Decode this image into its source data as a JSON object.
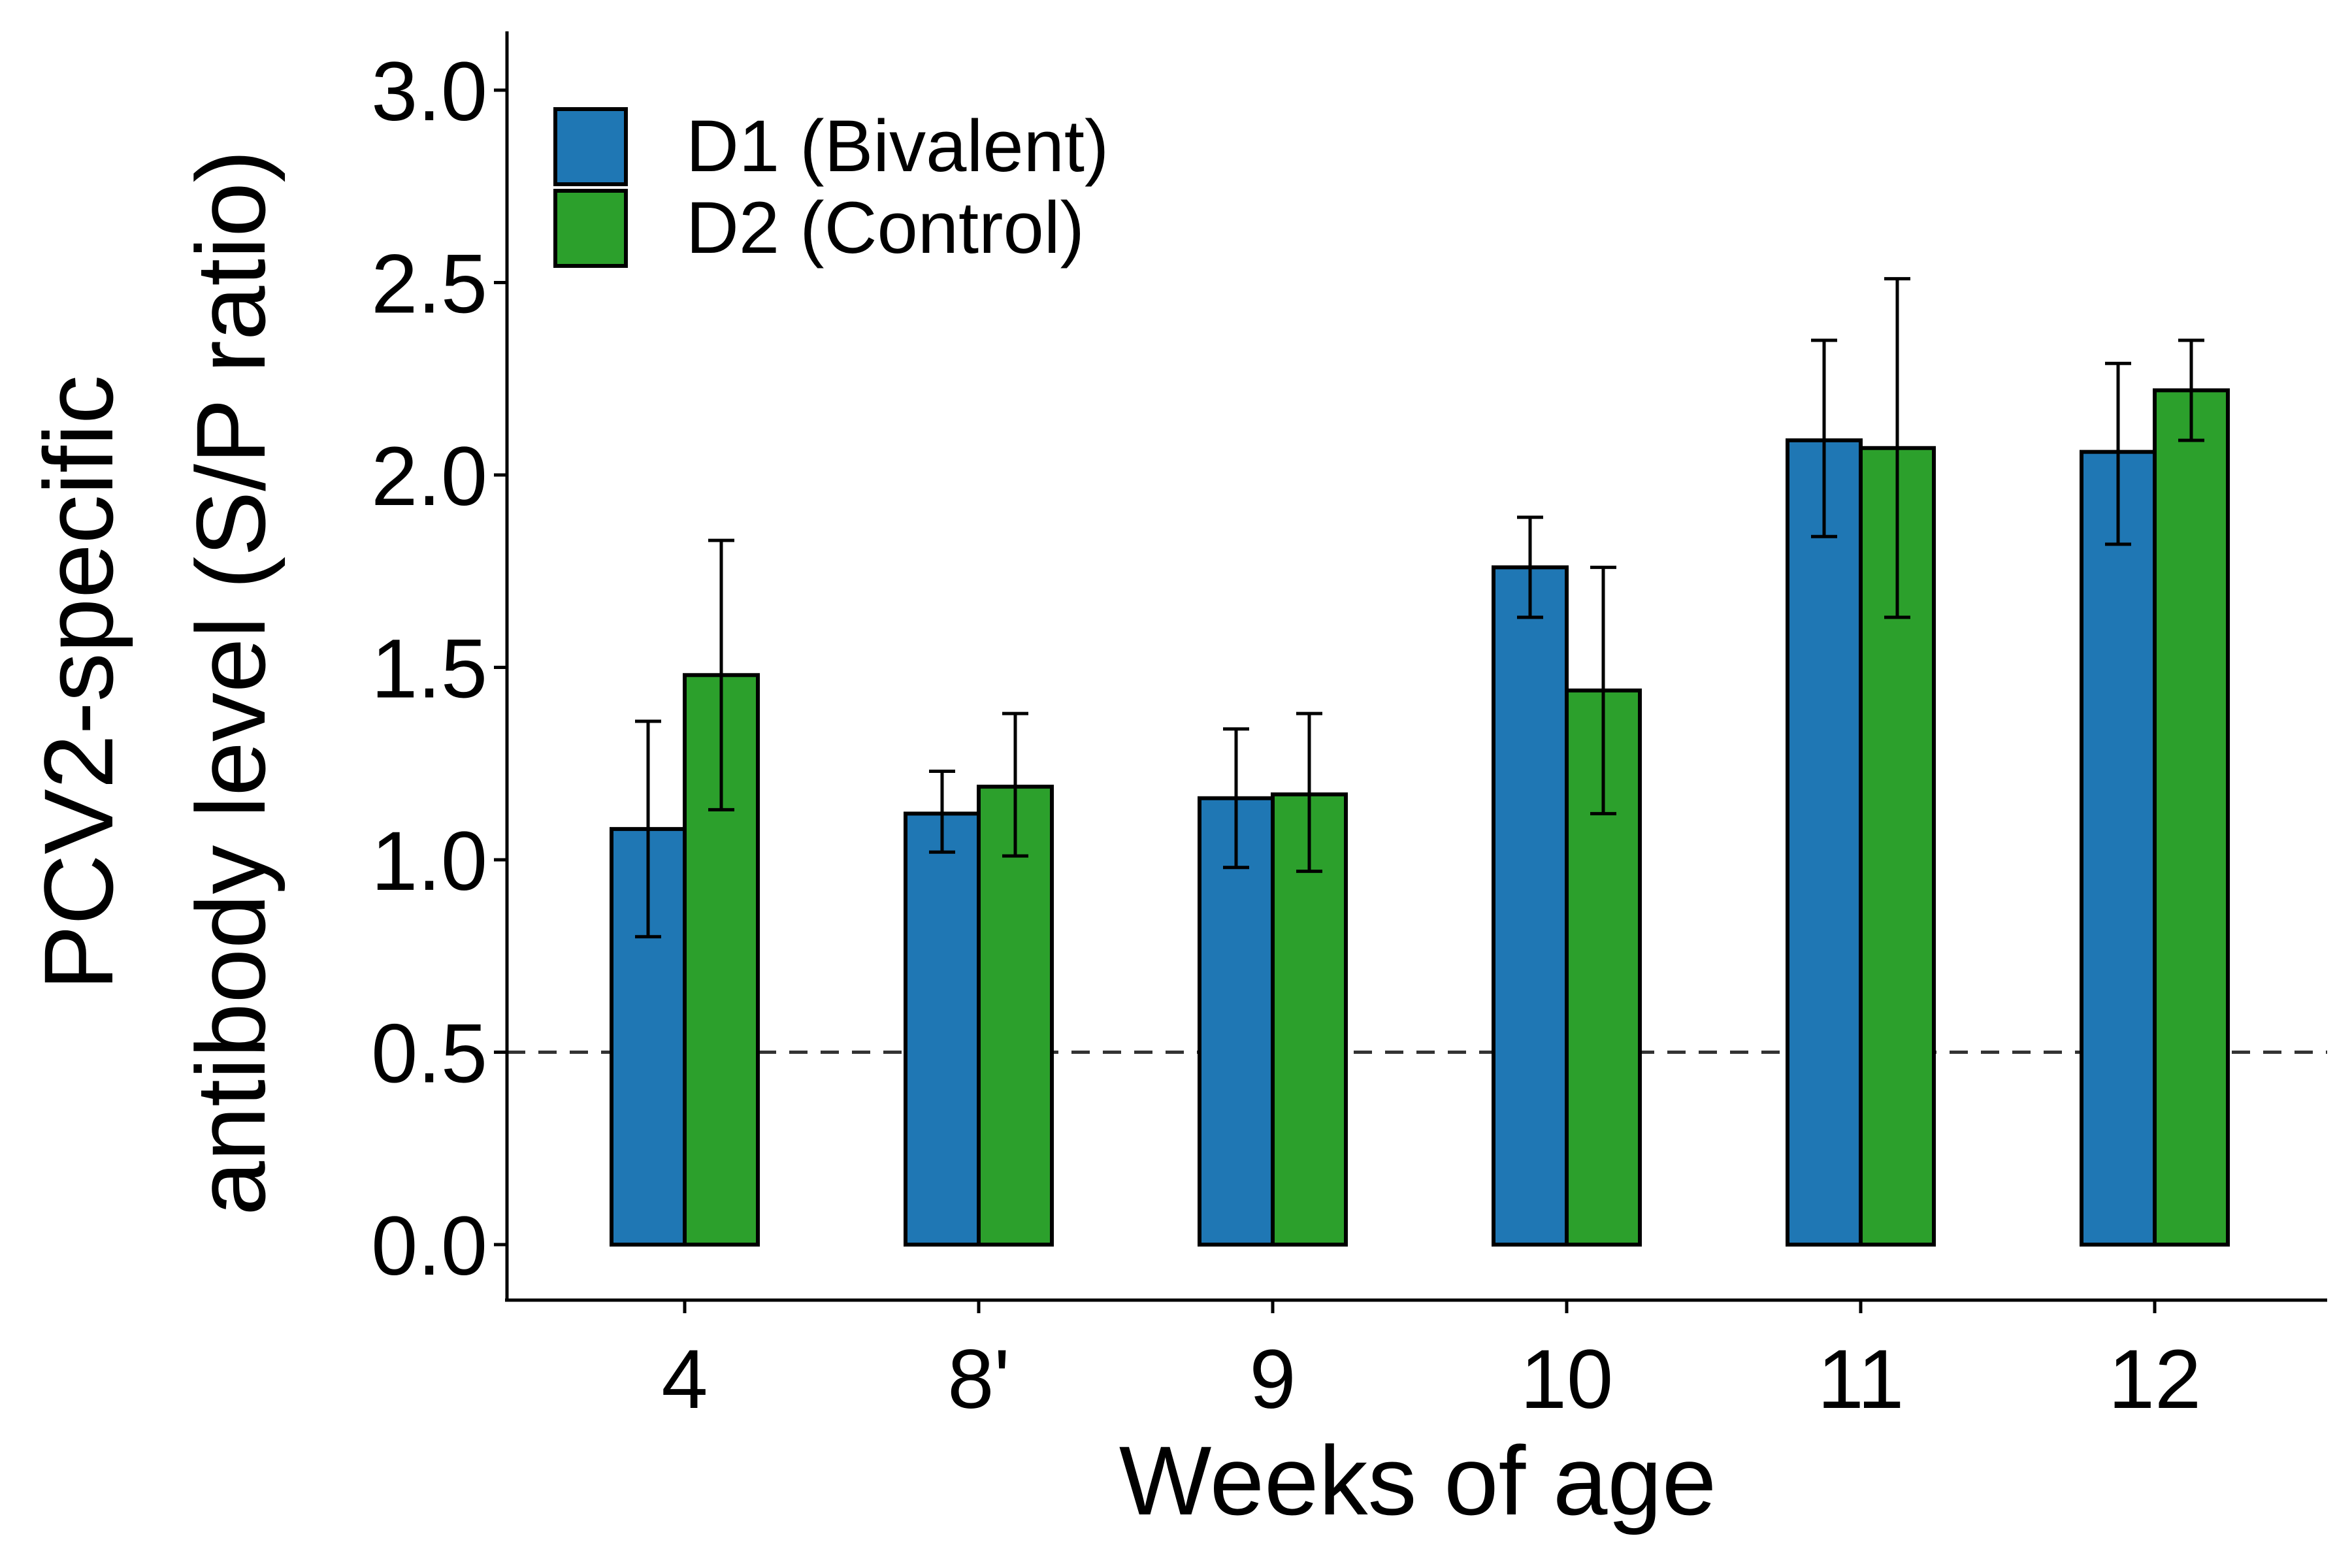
{
  "chart_data": {
    "type": "bar",
    "title": "",
    "xlabel": "Weeks of age",
    "ylabel_lines": [
      "PCV2-specific",
      "antibody level (S/P ratio)"
    ],
    "categories": [
      "4",
      "8'",
      "9",
      "10",
      "11",
      "12"
    ],
    "ylim": [
      0,
      3.1
    ],
    "yticks": [
      "0.0",
      "0.5",
      "1.0",
      "1.5",
      "2.0",
      "2.5",
      "3.0"
    ],
    "grid": false,
    "legend_position": "top-left",
    "reference_line": {
      "y": 0.5,
      "style": "dashed"
    },
    "series": [
      {
        "name": "D1 (Bivalent)",
        "color": "#1f77b4",
        "values": [
          1.08,
          1.12,
          1.16,
          1.76,
          2.09,
          2.06
        ],
        "error_low": [
          0.8,
          1.02,
          0.98,
          1.63,
          1.84,
          1.82
        ],
        "error_high": [
          1.36,
          1.23,
          1.34,
          1.89,
          2.35,
          2.29
        ]
      },
      {
        "name": "D2 (Control)",
        "color": "#2ca02c",
        "values": [
          1.48,
          1.19,
          1.17,
          1.44,
          2.07,
          2.22
        ],
        "error_low": [
          1.13,
          1.01,
          0.97,
          1.12,
          1.63,
          2.09
        ],
        "error_high": [
          1.83,
          1.38,
          1.38,
          1.76,
          2.51,
          2.35
        ]
      }
    ]
  }
}
